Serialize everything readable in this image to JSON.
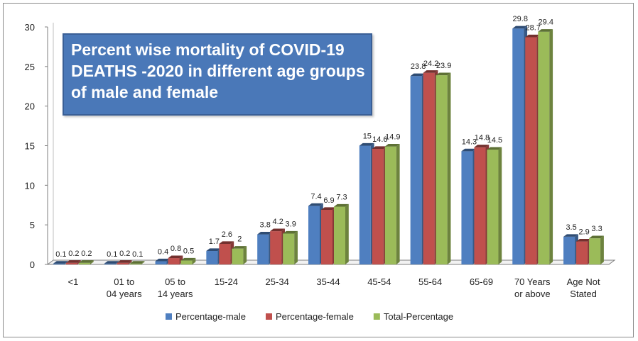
{
  "chart_data": {
    "type": "bar",
    "title": "Percent wise mortality of COVID-19 DEATHS -2020 in different age groups of male and female",
    "categories": [
      "<1",
      "01 to 04 years",
      "05 to 14 years",
      "15-24",
      "25-34",
      "35-44",
      "45-54",
      "55-64",
      "65-69",
      "70 Years or above",
      "Age Not Stated"
    ],
    "series": [
      {
        "name": "Percentage-male",
        "color": "#4f7fc0",
        "values": [
          0.1,
          0.1,
          0.4,
          1.7,
          3.8,
          7.4,
          15,
          23.8,
          14.3,
          29.8,
          3.5
        ]
      },
      {
        "name": "Percentage-female",
        "color": "#c0504d",
        "values": [
          0.2,
          0.2,
          0.8,
          2.6,
          4.2,
          6.9,
          14.6,
          24.2,
          14.8,
          28.7,
          2.9
        ]
      },
      {
        "name": "Total-Percentage",
        "color": "#9bbb59",
        "values": [
          0.2,
          0.1,
          0.5,
          2,
          3.9,
          7.3,
          14.9,
          23.9,
          14.5,
          29.4,
          3.3
        ]
      }
    ],
    "yticks": [
      "0",
      "5",
      "10",
      "15",
      "20",
      "25",
      "30"
    ],
    "ylim": [
      0,
      30
    ],
    "legend_position": "bottom",
    "grid": false
  }
}
